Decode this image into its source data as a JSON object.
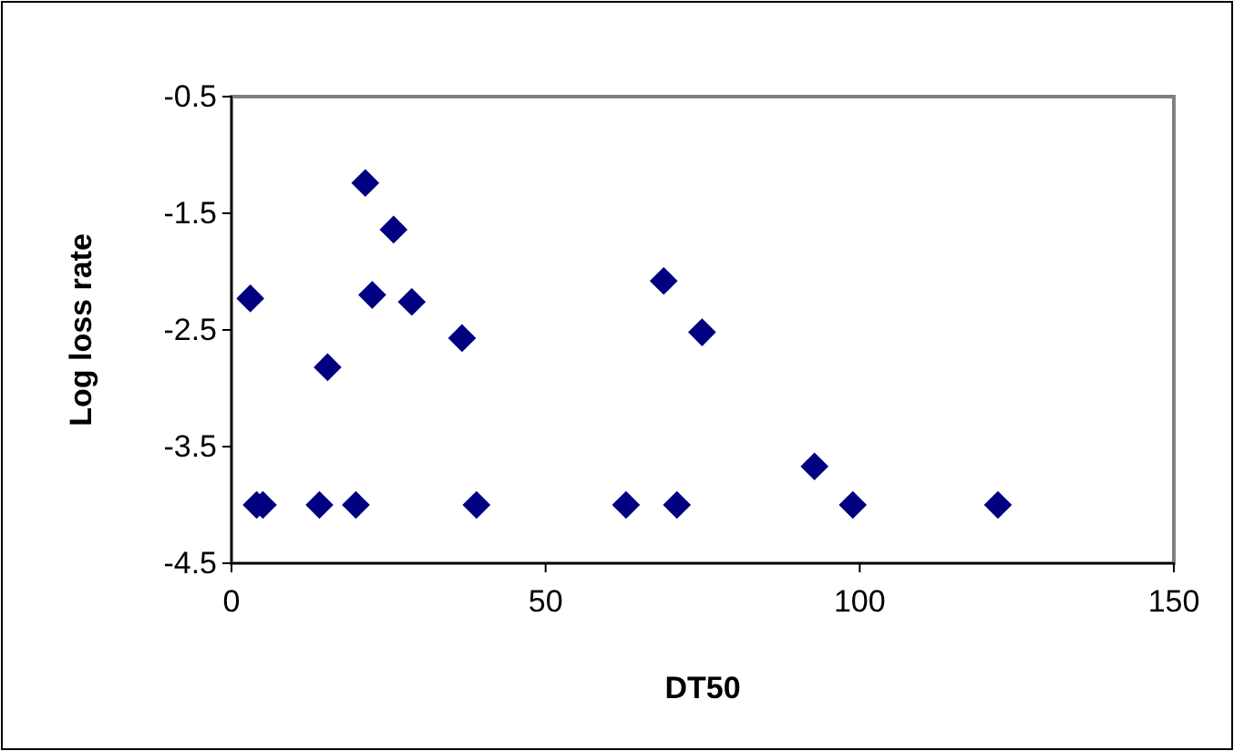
{
  "chart_data": {
    "type": "scatter",
    "xlabel": "DT50",
    "ylabel": "Log loss rate",
    "series": [
      {
        "color": "#000080",
        "x": [
          3,
          4,
          5,
          14,
          15.3,
          19.8,
          21.3,
          22.4,
          25.8,
          28.7,
          36.7,
          39,
          62.8,
          68.8,
          70.9,
          74.9,
          92.8,
          98.9,
          122
        ],
        "values": [
          -2.23,
          -4.0,
          -4.0,
          -4.0,
          -2.82,
          -4.0,
          -1.24,
          -2.2,
          -1.64,
          -2.26,
          -2.57,
          -4.0,
          -4.0,
          -2.08,
          -4.0,
          -2.52,
          -3.67,
          -4.0,
          -4.0
        ]
      }
    ],
    "marker": "diamond",
    "xlim": [
      0,
      150
    ],
    "xticks": [
      0,
      50,
      100,
      150
    ],
    "ylim": [
      -4.5,
      -0.5
    ],
    "yticks": [
      -4.5,
      -3.5,
      -2.5,
      -1.5,
      -0.5
    ],
    "grid": false
  }
}
